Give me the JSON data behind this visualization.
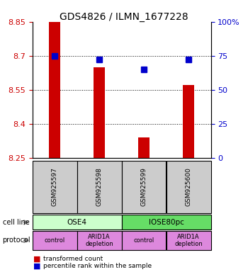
{
  "title": "GDS4826 / ILMN_1677228",
  "samples": [
    "GSM925597",
    "GSM925598",
    "GSM925599",
    "GSM925600"
  ],
  "bar_values": [
    8.85,
    8.65,
    8.34,
    8.57
  ],
  "bar_baseline": 8.25,
  "blue_values": [
    75,
    72,
    65,
    72
  ],
  "ylim_left": [
    8.25,
    8.85
  ],
  "ylim_right": [
    0,
    100
  ],
  "yticks_left": [
    8.25,
    8.4,
    8.55,
    8.7,
    8.85
  ],
  "yticks_right": [
    0,
    25,
    50,
    75,
    100
  ],
  "ytick_labels_right": [
    "0",
    "25",
    "50",
    "75",
    "100%"
  ],
  "bar_color": "#cc0000",
  "blue_color": "#0000cc",
  "cell_line_labels": [
    "OSE4",
    "IOSE80pc"
  ],
  "cell_line_colors": [
    "#ccffcc",
    "#66dd66"
  ],
  "cell_line_spans": [
    [
      0,
      2
    ],
    [
      2,
      4
    ]
  ],
  "protocol_labels": [
    "control",
    "ARID1A\ndepletion",
    "control",
    "ARID1A\ndepletion"
  ],
  "protocol_color": "#dd88dd",
  "legend_red_label": "transformed count",
  "legend_blue_label": "percentile rank within the sample",
  "sample_bg_color": "#cccccc",
  "left_axis_color": "#cc0000",
  "right_axis_color": "#0000cc",
  "grid_yticks": [
    8.4,
    8.55,
    8.7
  ]
}
